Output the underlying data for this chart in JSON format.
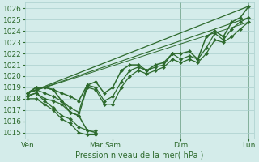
{
  "xlabel": "Pression niveau de la mer( hPa )",
  "ylim": [
    1014.5,
    1026.5
  ],
  "yticks": [
    1015,
    1016,
    1017,
    1018,
    1019,
    1020,
    1021,
    1022,
    1023,
    1024,
    1025,
    1026
  ],
  "background_color": "#d4ecea",
  "grid_color": "#aacfcc",
  "line_color": "#2d6a2d",
  "xtick_labels": [
    "Ven",
    "Mar",
    "Sam",
    "Dim",
    "Lun"
  ],
  "xtick_positions": [
    0,
    48,
    60,
    108,
    156
  ],
  "vlines": [
    48,
    60,
    108,
    156
  ],
  "xlim": [
    -2,
    160
  ],
  "series": [
    {
      "x": [
        0,
        156
      ],
      "y": [
        1018.5,
        1026.2
      ],
      "marker": null,
      "lw": 0.9
    },
    {
      "x": [
        0,
        156
      ],
      "y": [
        1018.5,
        1025.2
      ],
      "marker": null,
      "lw": 0.8
    },
    {
      "x": [
        0,
        156
      ],
      "y": [
        1018.5,
        1024.8
      ],
      "marker": null,
      "lw": 0.7
    },
    {
      "x": [
        0,
        6,
        12,
        18,
        24,
        30,
        36,
        42,
        48,
        54,
        60,
        66,
        72,
        78,
        84,
        90,
        96,
        102,
        108,
        114,
        120,
        126,
        132,
        138,
        144,
        150,
        156
      ],
      "y": [
        1018.5,
        1019.0,
        1019.0,
        1018.8,
        1018.5,
        1018.2,
        1017.8,
        1019.2,
        1019.5,
        1018.5,
        1019.0,
        1020.5,
        1021.0,
        1021.0,
        1020.5,
        1021.0,
        1021.2,
        1022.0,
        1022.0,
        1022.2,
        1021.5,
        1023.5,
        1024.0,
        1023.5,
        1024.8,
        1025.2,
        1026.2
      ],
      "marker": "D",
      "lw": 1.1
    },
    {
      "x": [
        0,
        6,
        12,
        18,
        24,
        30,
        36,
        42,
        48,
        54,
        60,
        66,
        72,
        78,
        84,
        90,
        96,
        102,
        108,
        114,
        120,
        126,
        132,
        138,
        144,
        150,
        156
      ],
      "y": [
        1018.5,
        1018.8,
        1018.5,
        1018.2,
        1017.8,
        1017.2,
        1016.8,
        1019.2,
        1019.0,
        1017.8,
        1018.2,
        1019.5,
        1020.5,
        1020.8,
        1020.5,
        1020.8,
        1021.0,
        1022.0,
        1021.5,
        1021.8,
        1021.5,
        1022.5,
        1023.8,
        1023.2,
        1024.2,
        1024.8,
        1025.2
      ],
      "marker": "D",
      "lw": 0.9
    },
    {
      "x": [
        0,
        6,
        12,
        18,
        24,
        30,
        36,
        42,
        48,
        54,
        60,
        66,
        72,
        78,
        84,
        90,
        96,
        102,
        108,
        114,
        120,
        126,
        132,
        138,
        144,
        150,
        156
      ],
      "y": [
        1018.3,
        1018.5,
        1018.0,
        1017.8,
        1017.5,
        1016.8,
        1016.5,
        1019.0,
        1018.8,
        1017.5,
        1017.5,
        1019.0,
        1020.0,
        1020.5,
        1020.2,
        1020.5,
        1020.8,
        1021.5,
        1021.2,
        1021.5,
        1021.2,
        1022.0,
        1023.2,
        1023.0,
        1023.5,
        1024.2,
        1024.8
      ],
      "marker": "D",
      "lw": 0.9
    }
  ],
  "detail_series": [
    {
      "x": [
        0,
        6,
        12,
        18,
        24,
        30,
        36,
        42,
        48
      ],
      "y": [
        1018.5,
        1019.0,
        1019.0,
        1018.8,
        1017.8,
        1016.8,
        1016.5,
        1015.2,
        1015.0
      ],
      "marker": "D",
      "lw": 1.1
    },
    {
      "x": [
        0,
        6,
        12,
        18,
        24,
        30,
        36,
        42,
        48
      ],
      "y": [
        1018.2,
        1018.5,
        1017.8,
        1017.2,
        1016.5,
        1016.2,
        1015.5,
        1015.2,
        1015.2
      ],
      "marker": "D",
      "lw": 0.9
    },
    {
      "x": [
        0,
        6,
        12,
        18,
        24,
        30,
        36,
        42,
        48
      ],
      "y": [
        1018.0,
        1018.0,
        1017.5,
        1017.0,
        1016.2,
        1015.8,
        1015.0,
        1014.8,
        1014.8
      ],
      "marker": "D",
      "lw": 0.9
    }
  ]
}
